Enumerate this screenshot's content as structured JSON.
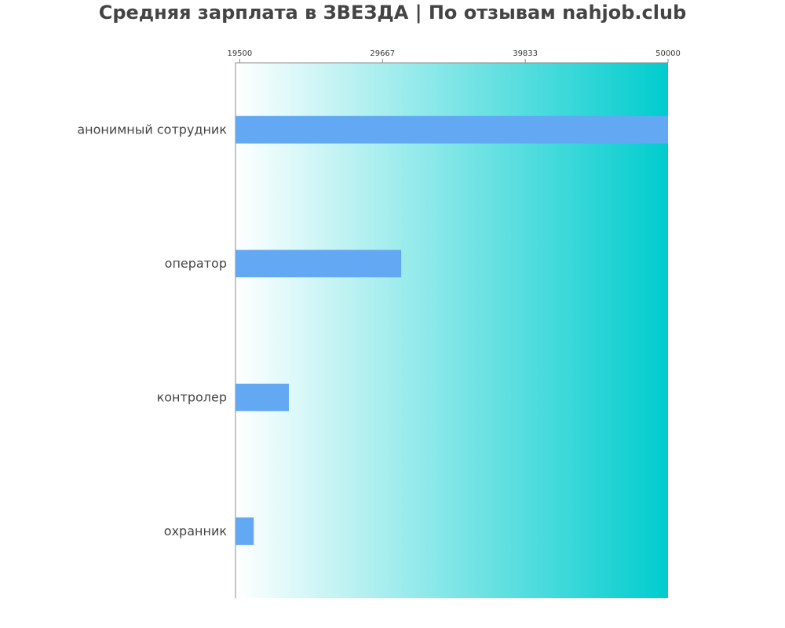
{
  "chart_data": {
    "type": "bar",
    "orientation": "horizontal",
    "title": "Средняя зарплата в ЗВЕЗДА | По отзывам nahjob.club",
    "categories": [
      "анонимный сотрудник",
      "оператор",
      "контролер",
      "охранник"
    ],
    "values": [
      50000,
      31000,
      23000,
      20500
    ],
    "xlim": [
      19200,
      50000
    ],
    "xticks": [
      "19500",
      "29667",
      "39833",
      "50000"
    ],
    "tick_position": "top",
    "grid": false,
    "legend": "none",
    "colors": {
      "bar": "#63a8f2",
      "gradient_start": "#ffffff",
      "gradient_end": "#00ccce",
      "axis": "#888888",
      "text": "#444444"
    }
  }
}
